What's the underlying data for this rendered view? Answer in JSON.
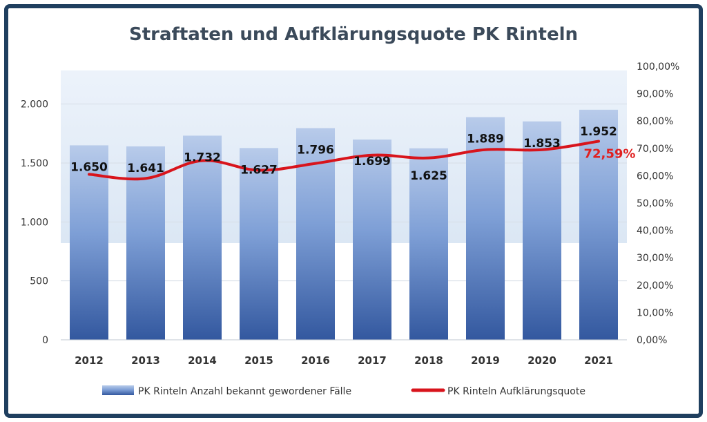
{
  "chart_data": {
    "type": "bar",
    "title": "Straftaten und Aufklärungsquote PK Rinteln",
    "categories": [
      "2012",
      "2013",
      "2014",
      "2015",
      "2016",
      "2017",
      "2018",
      "2019",
      "2020",
      "2021"
    ],
    "series": [
      {
        "name": "PK Rinteln Anzahl bekannt gewordener Fälle",
        "type": "bar",
        "axis": "left",
        "values": [
          1650,
          1641,
          1732,
          1627,
          1796,
          1699,
          1625,
          1889,
          1853,
          1952
        ],
        "labels": [
          "1.650",
          "1.641",
          "1.732",
          "1.627",
          "1.796",
          "1.699",
          "1.625",
          "1.889",
          "1.853",
          "1.952"
        ]
      },
      {
        "name": "PK Rinteln Aufklärungsquote",
        "type": "line",
        "axis": "right",
        "values": [
          60.5,
          59.0,
          65.5,
          62.0,
          64.5,
          67.5,
          66.5,
          69.5,
          69.5,
          72.59
        ],
        "last_label": "72,59%"
      }
    ],
    "left_axis": {
      "ylim": [
        0,
        2250
      ],
      "ticks": [
        0,
        500,
        1000,
        1500,
        2000
      ],
      "tick_labels": [
        "0",
        "500",
        "1.000",
        "1.500",
        "2.000"
      ]
    },
    "right_axis": {
      "ylim": [
        0,
        100
      ],
      "ticks": [
        0,
        10,
        20,
        30,
        40,
        50,
        60,
        70,
        80,
        90,
        100
      ],
      "tick_labels": [
        "0,00%",
        "10,00%",
        "20,00%",
        "30,00%",
        "40,00%",
        "50,00%",
        "60,00%",
        "70,00%",
        "80,00%",
        "90,00%",
        "100,00%"
      ]
    },
    "grid": true,
    "legend_position": "bottom",
    "colors": {
      "bar": "#4a72b8",
      "line": "#d8141c",
      "frame": "#1f3f5f"
    }
  }
}
